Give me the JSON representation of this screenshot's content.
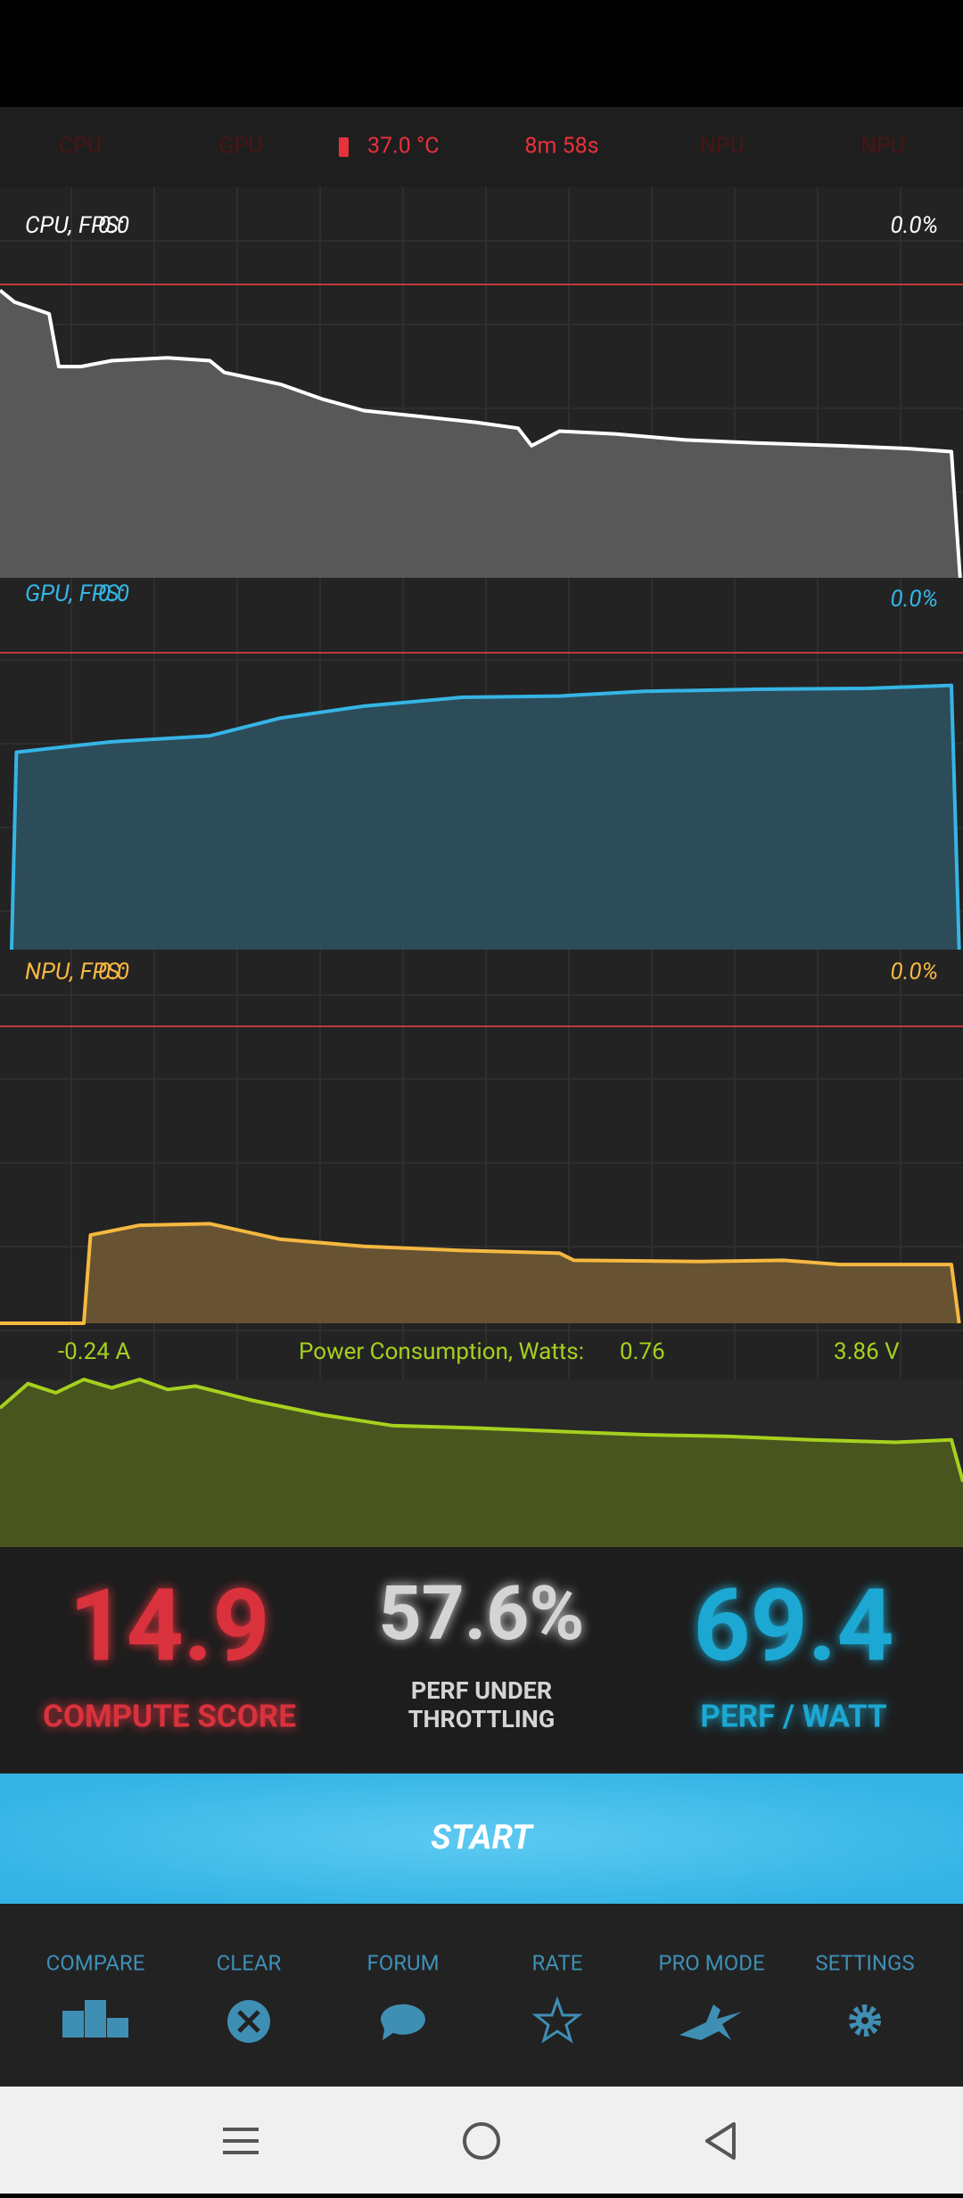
{
  "status": {
    "cpu": "CPU",
    "gpu": "GPU",
    "temperature": "37.0 °C",
    "elapsed": "8m 58s",
    "npu_1": "NPU",
    "npu_2": "NPU"
  },
  "chart_data": [
    {
      "type": "area",
      "title": "CPU, FPS:",
      "fps": "0.0",
      "load": "0.0%",
      "color": "#ffffff",
      "fill": "#5c5c5c",
      "x": [
        0,
        1.5,
        5.1,
        6.1,
        8.4,
        11.6,
        17.4,
        21.8,
        23.3,
        29.1,
        33.4,
        37.8,
        43.6,
        49.4,
        53.8,
        55.2,
        58.1,
        64,
        71.2,
        78.5,
        87.2,
        94.5,
        98.8,
        99.7
      ],
      "values": [
        98,
        94,
        90,
        72,
        72,
        74,
        75,
        74,
        70,
        66,
        61,
        57,
        55,
        53,
        51,
        45,
        50,
        49,
        47,
        46,
        45,
        44,
        43,
        0
      ],
      "xlim": [
        0,
        100
      ],
      "ylim": [
        0,
        100
      ]
    },
    {
      "type": "area",
      "title": "GPU, FPS:",
      "fps": "0.0",
      "load": "0.0%",
      "color": "#35b5e5",
      "fill": "#2d4f5e",
      "x": [
        1.2,
        1.7,
        5.8,
        11.6,
        21.8,
        29.1,
        37.8,
        48,
        58.1,
        66.9,
        78.5,
        90.1,
        98.8,
        99.6
      ],
      "values": [
        0,
        66.5,
        68,
        70,
        72,
        78,
        82,
        85,
        85.4,
        87,
        87.7,
        88,
        89,
        0
      ],
      "xlim": [
        0,
        100
      ],
      "ylim": [
        0,
        100
      ]
    },
    {
      "type": "area",
      "title": "NPU, FPS:",
      "fps": "0.0",
      "load": "0.0%",
      "color": "#f5b841",
      "fill": "#6b5633",
      "x": [
        0,
        8.7,
        9.4,
        14.5,
        21.8,
        29.1,
        37.8,
        48,
        58.1,
        59.6,
        72.7,
        81.4,
        87.2,
        98.8,
        99.6
      ],
      "values": [
        0,
        0,
        29.7,
        33,
        33.5,
        28.3,
        25.9,
        24.5,
        23.6,
        21.2,
        20.8,
        21.2,
        19.8,
        19.8,
        0
      ],
      "xlim": [
        0,
        100
      ],
      "ylim": [
        0,
        100
      ]
    },
    {
      "type": "area",
      "title": "Power Consumption, Watts:",
      "watts": "0.76",
      "current": "-0.24 A",
      "voltage": "3.86 V",
      "color": "#a6d01e",
      "fill": "#4b571f",
      "x": [
        0,
        2.9,
        5.8,
        8.7,
        11.6,
        14.5,
        17.4,
        20.3,
        26.2,
        33.4,
        40.7,
        49.4,
        58.1,
        66.9,
        75.6,
        84.3,
        93,
        98.8,
        100
      ],
      "values": [
        83,
        97.5,
        92,
        100,
        95,
        100,
        94,
        96,
        87.5,
        79,
        72.5,
        71,
        69,
        67,
        66,
        64,
        62.5,
        64,
        39
      ],
      "xlim": [
        0,
        100
      ],
      "ylim": [
        0,
        100
      ]
    }
  ],
  "scores": {
    "compute_score": "14.9",
    "compute_label": "COMPUTE SCORE",
    "throttling": "57.6%",
    "throttling_label_1": "PERF UNDER",
    "throttling_label_2": "THROTTLING",
    "perf_watt": "69.4",
    "perf_watt_label": "PERF / WATT"
  },
  "start": "START",
  "nav": [
    "COMPARE",
    "CLEAR",
    "FORUM",
    "RATE",
    "PRO MODE",
    "SETTINGS"
  ]
}
